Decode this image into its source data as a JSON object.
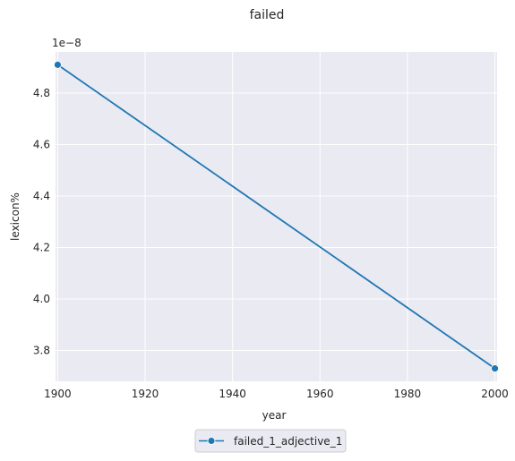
{
  "chart_data": {
    "type": "line",
    "title": "failed",
    "xlabel": "year",
    "ylabel": "lexicon%",
    "y_offset_label": "1e−8",
    "x_ticks": [
      "1900",
      "1920",
      "1940",
      "1960",
      "1980",
      "2000"
    ],
    "y_ticks": [
      "3.8",
      "4.0",
      "4.2",
      "4.4",
      "4.6",
      "4.8"
    ],
    "xlim": [
      1899.5,
      2000.5
    ],
    "ylim": [
      3.68,
      4.96
    ],
    "grid": true,
    "legend_position": "bottom-center",
    "series": [
      {
        "name": "failed_1_adjective_1",
        "color": "#1f77b4",
        "marker": "circle",
        "x": [
          1900,
          2000
        ],
        "y": [
          4.91,
          3.73
        ]
      }
    ]
  }
}
